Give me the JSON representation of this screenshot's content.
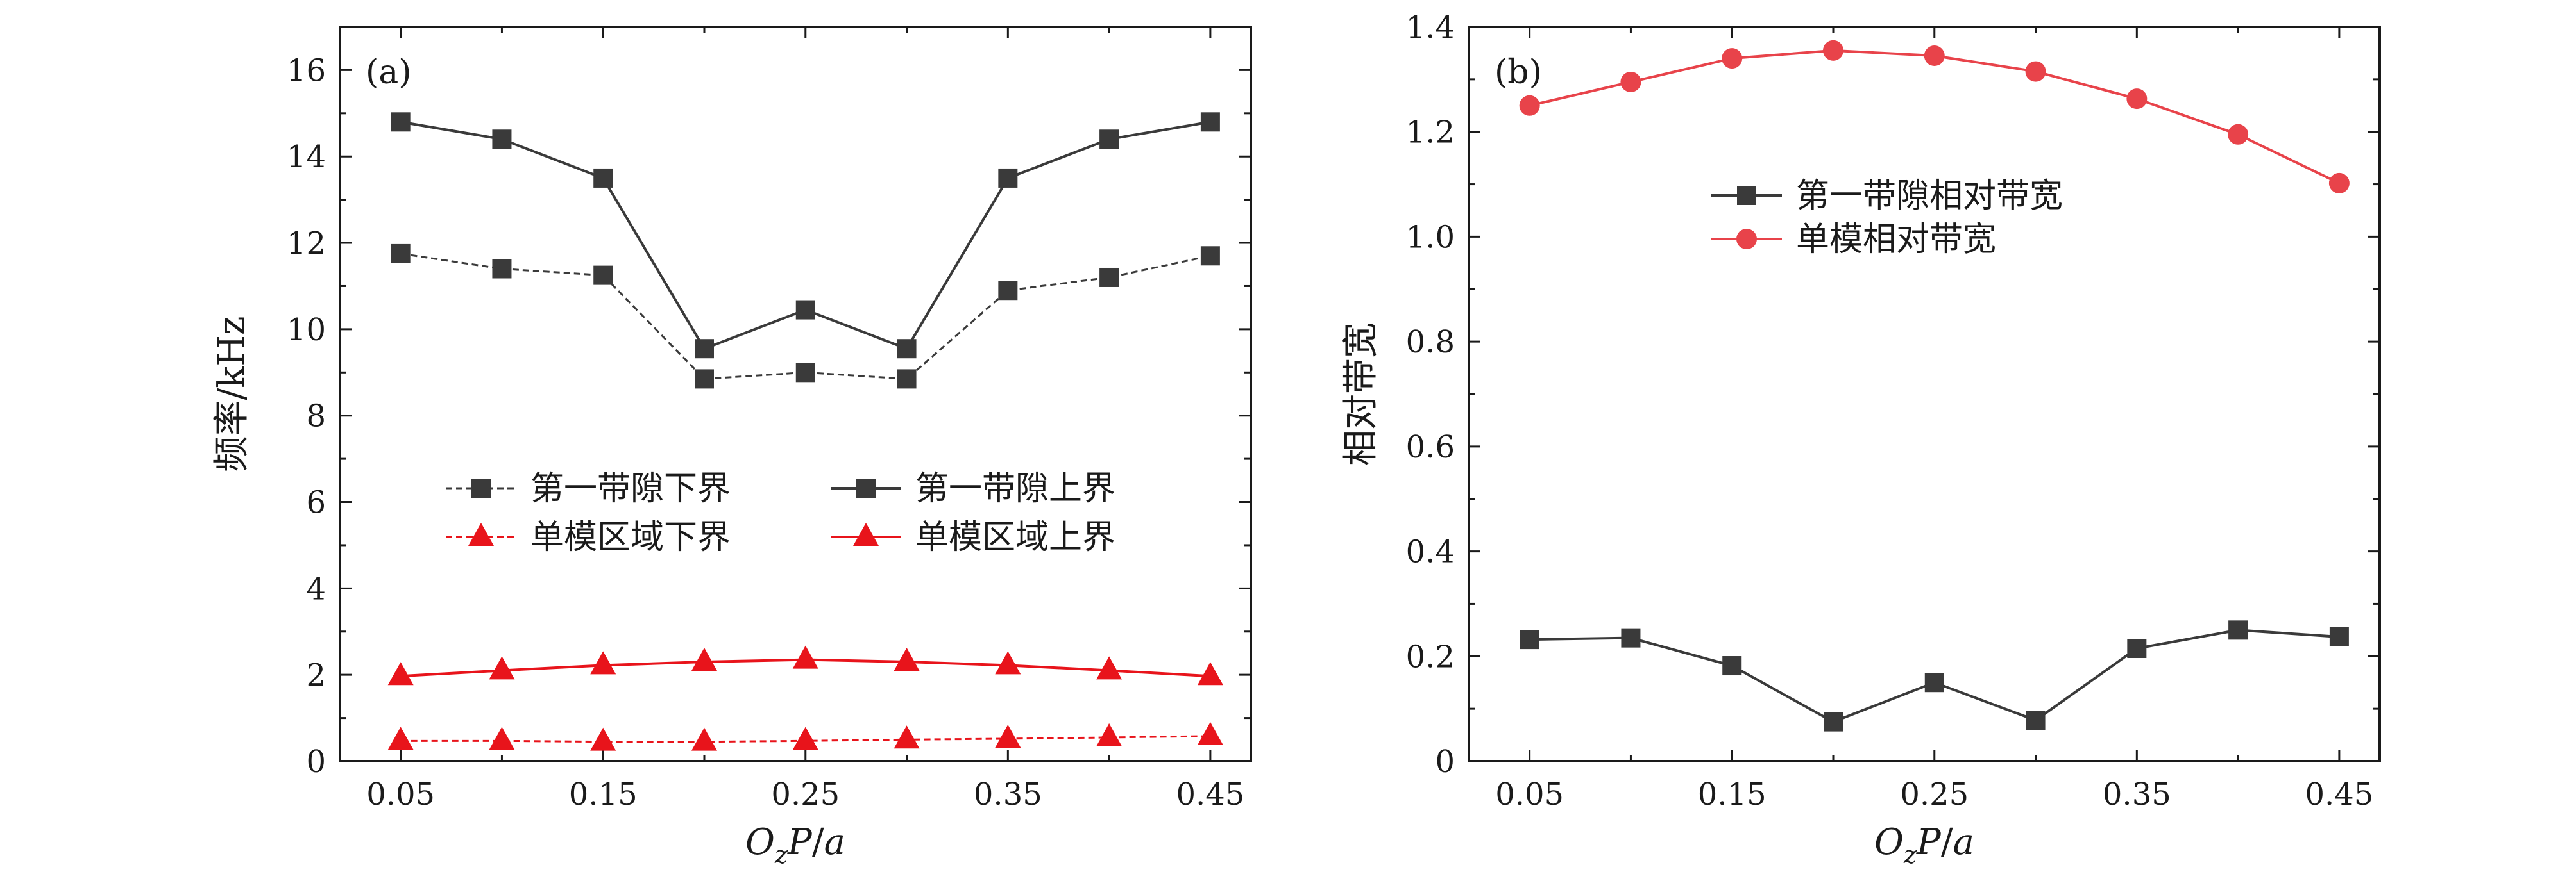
{
  "colors": {
    "dark": "#3a3a3a",
    "red": "#e8141b",
    "red_light": "#e8434a",
    "frame": "#1a1a1a"
  },
  "chart_data": [
    {
      "type": "line",
      "panel_label": "(a)",
      "ylabel": "频率/kHz",
      "xlabel_parts": [
        "O",
        "z",
        "P",
        "/",
        "a"
      ],
      "xlim": [
        0.02,
        0.47
      ],
      "ylim": [
        0,
        17
      ],
      "xticks": [
        0.05,
        0.15,
        0.25,
        0.35,
        0.45
      ],
      "xtick_labels": [
        "0.05",
        "0.15",
        "0.25",
        "0.35",
        "0.45"
      ],
      "yticks": [
        0,
        2,
        4,
        6,
        8,
        10,
        12,
        14,
        16
      ],
      "ytick_labels": [
        "0",
        "2",
        "4",
        "6",
        "8",
        "10",
        "12",
        "14",
        "16"
      ],
      "x": [
        0.05,
        0.1,
        0.15,
        0.2,
        0.25,
        0.3,
        0.35,
        0.4,
        0.45
      ],
      "series": [
        {
          "name": "第一带隙下界",
          "marker": "square",
          "line": "dashed",
          "color": "#3a3a3a",
          "values": [
            11.75,
            11.4,
            11.25,
            8.85,
            9.0,
            8.85,
            10.9,
            11.2,
            11.7
          ]
        },
        {
          "name": "第一带隙上界",
          "marker": "square",
          "line": "solid",
          "color": "#3a3a3a",
          "values": [
            14.8,
            14.4,
            13.5,
            9.55,
            10.45,
            9.55,
            13.5,
            14.4,
            14.8
          ]
        },
        {
          "name": "单模区域下界",
          "marker": "triangle",
          "line": "dashed",
          "color": "#e8141b",
          "values": [
            0.47,
            0.47,
            0.45,
            0.45,
            0.47,
            0.5,
            0.52,
            0.55,
            0.58
          ]
        },
        {
          "name": "单模区域上界",
          "marker": "triangle",
          "line": "solid",
          "color": "#e8141b",
          "values": [
            1.97,
            2.1,
            2.22,
            2.3,
            2.35,
            2.3,
            2.22,
            2.1,
            1.97
          ]
        }
      ],
      "legend_layout": "2x2, lower middle"
    },
    {
      "type": "line",
      "panel_label": "(b)",
      "ylabel": "相对带宽",
      "xlabel_parts": [
        "O",
        "z",
        "P",
        "/",
        "a"
      ],
      "xlim": [
        0.02,
        0.47
      ],
      "ylim": [
        0,
        1.4
      ],
      "xticks": [
        0.05,
        0.15,
        0.25,
        0.35,
        0.45
      ],
      "xtick_labels": [
        "0.05",
        "0.15",
        "0.25",
        "0.35",
        "0.45"
      ],
      "yticks": [
        0,
        0.2,
        0.4,
        0.6,
        0.8,
        1.0,
        1.2,
        1.4
      ],
      "ytick_labels": [
        "0",
        "0.2",
        "0.4",
        "0.6",
        "0.8",
        "1.0",
        "1.2",
        "1.4"
      ],
      "x": [
        0.05,
        0.1,
        0.15,
        0.2,
        0.25,
        0.3,
        0.35,
        0.4,
        0.45
      ],
      "series": [
        {
          "name": "第一带隙相对带宽",
          "marker": "square",
          "line": "solid",
          "color": "#3a3a3a",
          "values": [
            0.232,
            0.235,
            0.182,
            0.075,
            0.15,
            0.078,
            0.215,
            0.25,
            0.237
          ]
        },
        {
          "name": "单模相对带宽",
          "marker": "circle",
          "line": "solid",
          "color": "#e8434a",
          "values": [
            1.25,
            1.295,
            1.34,
            1.355,
            1.345,
            1.315,
            1.263,
            1.195,
            1.102
          ]
        }
      ],
      "legend_layout": "single column, upper middle"
    }
  ]
}
